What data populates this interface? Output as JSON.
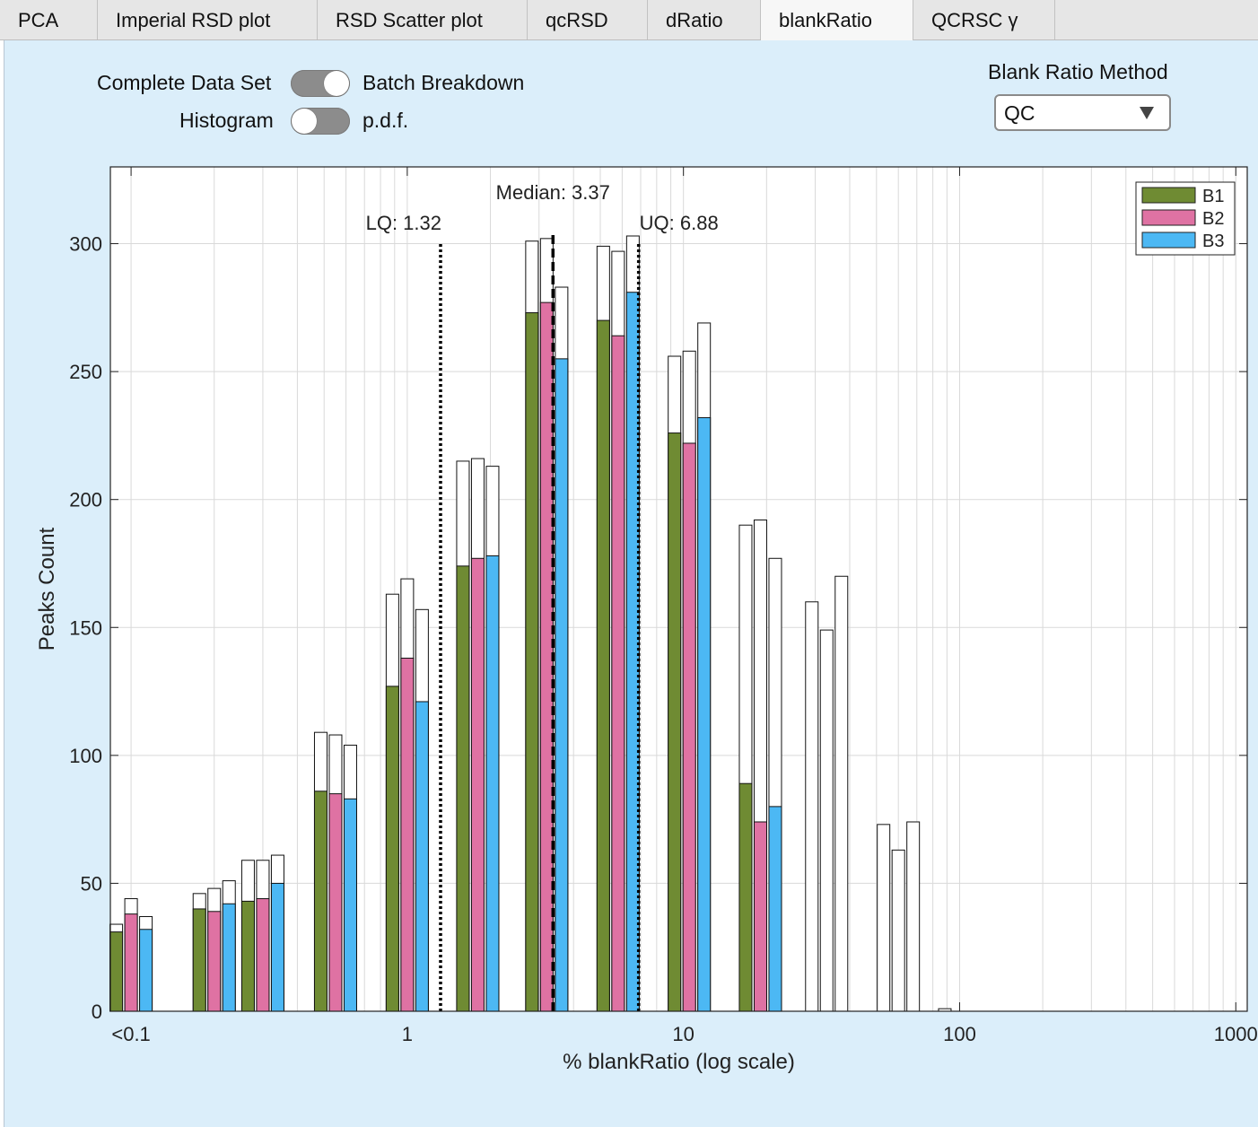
{
  "tabs": [
    {
      "label": "PCA",
      "active": false
    },
    {
      "label": "Imperial RSD plot",
      "active": false
    },
    {
      "label": "RSD Scatter plot",
      "active": false
    },
    {
      "label": "qcRSD",
      "active": false
    },
    {
      "label": "dRatio",
      "active": false
    },
    {
      "label": "blankRatio",
      "active": true
    },
    {
      "label": "QCRSC γ",
      "active": false
    }
  ],
  "controls": {
    "toggle1": {
      "left_label": "Complete Data Set",
      "right_label": "Batch Breakdown",
      "state": "right"
    },
    "toggle2": {
      "left_label": "Histogram",
      "right_label": "p.d.f.",
      "state": "left"
    },
    "method": {
      "label": "Blank Ratio Method",
      "value": "QC",
      "icon": "triangle-down-icon"
    }
  },
  "colors": {
    "b1": "#6f8b33",
    "b2": "#df72a3",
    "b3": "#4cb8f4",
    "panel": "#dbeefa"
  },
  "chart_data": {
    "type": "bar",
    "xscale": "log",
    "xlabel": "% blankRatio (log scale)",
    "ylabel": "Peaks Count",
    "ylim": [
      0,
      330
    ],
    "yticks": [
      0,
      50,
      100,
      150,
      200,
      250,
      300
    ],
    "xticks": [
      {
        "value": 0.1,
        "label": "<0.1"
      },
      {
        "value": 1,
        "label": "1"
      },
      {
        "value": 10,
        "label": "10"
      },
      {
        "value": 100,
        "label": "100"
      },
      {
        "value": 1000,
        "label": "1000"
      }
    ],
    "grid": true,
    "legend_position": "top-right",
    "bins": [
      0.1,
      0.2,
      0.3,
      0.55,
      1,
      1.8,
      3.2,
      5.8,
      10.5,
      19,
      33,
      60,
      100
    ],
    "series": [
      {
        "name": "B1",
        "color": "#6f8b33",
        "totals": [
          34,
          46,
          59,
          109,
          163,
          215,
          301,
          299,
          256,
          190,
          160,
          73,
          1
        ],
        "filled": [
          31,
          40,
          43,
          86,
          127,
          174,
          273,
          270,
          226,
          89,
          0,
          0,
          0
        ]
      },
      {
        "name": "B2",
        "color": "#df72a3",
        "totals": [
          44,
          48,
          59,
          108,
          169,
          216,
          302,
          297,
          258,
          192,
          149,
          63,
          0
        ],
        "filled": [
          38,
          39,
          44,
          85,
          138,
          177,
          277,
          264,
          222,
          74,
          0,
          0,
          0
        ]
      },
      {
        "name": "B3",
        "color": "#4cb8f4",
        "totals": [
          37,
          51,
          61,
          104,
          157,
          213,
          283,
          303,
          269,
          177,
          170,
          74,
          0
        ],
        "filled": [
          32,
          42,
          50,
          83,
          121,
          178,
          255,
          281,
          232,
          80,
          0,
          0,
          0
        ]
      }
    ],
    "reference_lines": [
      {
        "name": "LQ",
        "value": 1.32,
        "label": "LQ: 1.32",
        "style": "dotted"
      },
      {
        "name": "Median",
        "value": 3.37,
        "label": "Median: 3.37",
        "style": "dashed"
      },
      {
        "name": "UQ",
        "value": 6.88,
        "label": "UQ: 6.88",
        "style": "dotted"
      }
    ]
  }
}
